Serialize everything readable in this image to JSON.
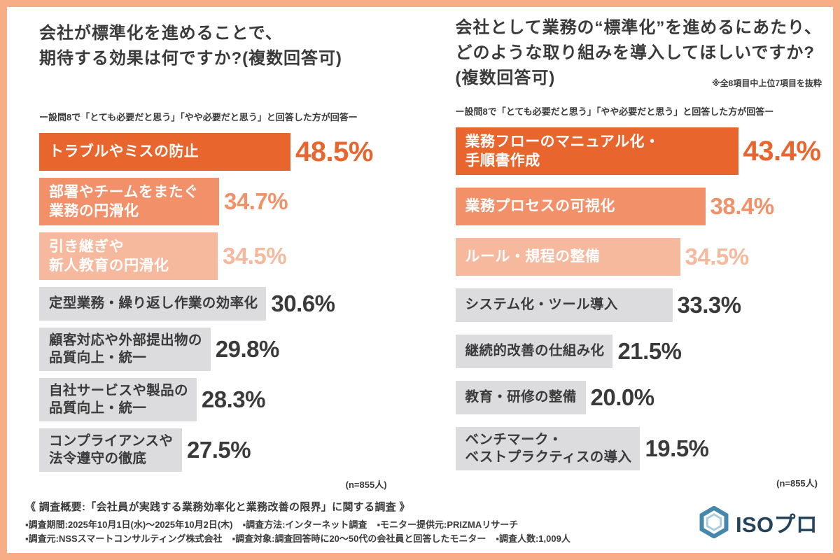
{
  "palette": {
    "rank1": "#e8662e",
    "rank2": "#f29069",
    "rank3": "#f6b99d",
    "gray": "#dcdcde",
    "text_dark": "#3a3a3a",
    "frame_border": "#f7ad85",
    "logo_blue": "#4688ad",
    "logo_inner_blue": "#a8cadd",
    "logo_text_color": "#24435c"
  },
  "chart_data": [
    {
      "type": "bar",
      "orientation": "horizontal",
      "title": "会社が標準化を進めることで、期待する効果は何ですか?(複数回答可)",
      "title_lines": [
        "会社が標準化を進めることで、",
        "期待する効果は何ですか?(複数回答可)"
      ],
      "subtitle": "ー設問8で「とても必要だと思う」「やや必要だと思う」と回答した方が回答ー",
      "note": "",
      "n_label": "(n=855人)",
      "unit": "%",
      "xlim": [
        0,
        50
      ],
      "legend": "none",
      "grid": false,
      "categories": [
        "トラブルやミスの防止",
        "部署やチームをまたぐ業務の円滑化",
        "引き継ぎや新人教育の円滑化",
        "定型業務・繰り返し作業の効率化",
        "顧客対応や外部提出物の品質向上・統一",
        "自社サービスや製品の品質向上・統一",
        "コンプライアンスや法令遵守の徹底"
      ],
      "values": [
        48.5,
        34.7,
        34.5,
        30.6,
        29.8,
        28.3,
        27.5
      ],
      "bars": [
        {
          "label_lines": [
            "トラブルやミスの防止"
          ],
          "value": 48.5,
          "tone": "rank1"
        },
        {
          "label_lines": [
            "部署やチームをまたぐ",
            "業務の円滑化"
          ],
          "value": 34.7,
          "tone": "rank2"
        },
        {
          "label_lines": [
            "引き継ぎや",
            "新人教育の円滑化"
          ],
          "value": 34.5,
          "tone": "rank3"
        },
        {
          "label_lines": [
            "定型業務・繰り返し作業の効率化"
          ],
          "value": 30.6,
          "tone": "gray"
        },
        {
          "label_lines": [
            "顧客対応や外部提出物の",
            "品質向上・統一"
          ],
          "value": 29.8,
          "tone": "gray"
        },
        {
          "label_lines": [
            "自社サービスや製品の",
            "品質向上・統一"
          ],
          "value": 28.3,
          "tone": "gray"
        },
        {
          "label_lines": [
            "コンプライアンスや",
            "法令遵守の徹底"
          ],
          "value": 27.5,
          "tone": "gray"
        }
      ]
    },
    {
      "type": "bar",
      "orientation": "horizontal",
      "title": "会社として業務の“標準化”を進めるにあたり、どのような取り組みを導入してほしいですか?(複数回答可)",
      "title_lines": [
        "会社として業務の“標準化”を進めるにあたり、",
        "どのような取り組みを導入してほしいですか?",
        "(複数回答可)"
      ],
      "subtitle": "ー設問8で「とても必要だと思う」「やや必要だと思う」と回答した方が回答ー",
      "note": "※全8項目中上位7項目を抜粋",
      "n_label": "(n=855人)",
      "unit": "%",
      "xlim": [
        0,
        45
      ],
      "legend": "none",
      "grid": false,
      "categories": [
        "業務フローのマニュアル化・手順書作成",
        "業務プロセスの可視化",
        "ルール・規程の整備",
        "システム化・ツール導入",
        "継続的改善の仕組み化",
        "教育・研修の整備",
        "ベンチマーク・ベストプラクティスの導入"
      ],
      "values": [
        43.4,
        38.4,
        34.5,
        33.3,
        21.5,
        20.0,
        19.5
      ],
      "bars": [
        {
          "label_lines": [
            "業務フローのマニュアル化・",
            "手順書作成"
          ],
          "value": 43.4,
          "tone": "rank1"
        },
        {
          "label_lines": [
            "業務プロセスの可視化"
          ],
          "value": 38.4,
          "tone": "rank2"
        },
        {
          "label_lines": [
            "ルール・規程の整備"
          ],
          "value": 34.5,
          "tone": "rank3"
        },
        {
          "label_lines": [
            "システム化・ツール導入"
          ],
          "value": 33.3,
          "tone": "gray"
        },
        {
          "label_lines": [
            "継続的改善の仕組み化"
          ],
          "value": 21.5,
          "tone": "gray"
        },
        {
          "label_lines": [
            "教育・研修の整備"
          ],
          "value": 20.0,
          "tone": "gray"
        },
        {
          "label_lines": [
            "ベンチマーク・",
            "ベストプラクティスの導入"
          ],
          "value": 19.5,
          "tone": "gray"
        }
      ]
    }
  ],
  "footer": {
    "heading": "《 調査概要:「会社員が実践する業務効率化と業務改善の限界」に関する調査 》",
    "line2": [
      "▪調査期間:2025年10月1日(水)〜2025年10月2日(木)",
      "▪調査方法:インターネット調査",
      "▪モニター提供元:PRIZMAリサーチ"
    ],
    "line3": [
      "▪調査元:NSSスマートコンサルティング株式会社",
      "▪調査対象:調査回答時に20〜50代の会社員と回答したモニター",
      "▪調査人数:1,009人"
    ]
  },
  "logo": {
    "text": "ISOプロ",
    "icon": "hexagon-icon"
  }
}
